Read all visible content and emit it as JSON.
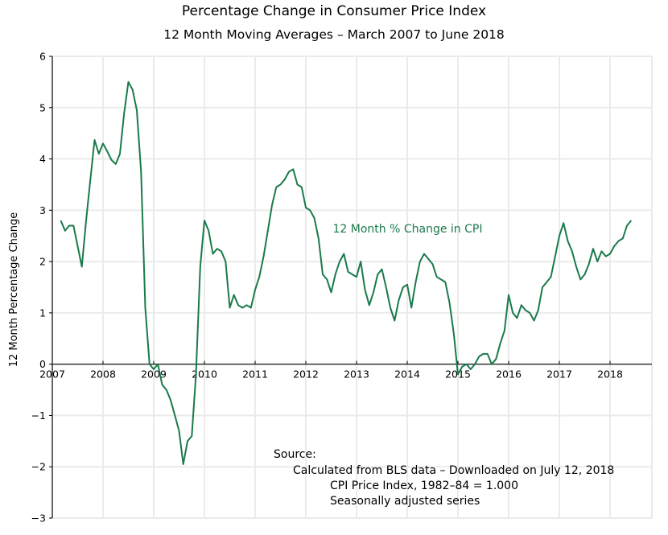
{
  "chart_data": {
    "type": "line",
    "title": "Percentage Change in Consumer Price Index",
    "subtitle": "12 Month Moving Averages  –  March 2007 to June 2018",
    "xlabel": "",
    "ylabel": "12 Month Percentage Change",
    "xlim": [
      2007,
      2018.95
    ],
    "ylim": [
      -3,
      6
    ],
    "x_ticks": [
      "2007",
      "2008",
      "2009",
      "2010",
      "2011",
      "2012",
      "2013",
      "2014",
      "2015",
      "2016",
      "2017",
      "2018"
    ],
    "y_ticks": [
      "-3",
      "-2",
      "-1",
      "0",
      "1",
      "2",
      "3",
      "4",
      "5",
      "6"
    ],
    "grid": true,
    "line_color": "#1a7a4a",
    "series": [
      {
        "name": "12 Month % Change in CPI",
        "start": "2007-03",
        "frequency": "monthly",
        "values": [
          2.8,
          2.6,
          2.7,
          2.7,
          2.3,
          1.9,
          2.8,
          3.6,
          4.37,
          4.1,
          4.3,
          4.15,
          3.98,
          3.9,
          4.1,
          4.9,
          5.5,
          5.35,
          4.95,
          3.75,
          1.1,
          0.0,
          -0.1,
          0.0,
          -0.4,
          -0.5,
          -0.7,
          -1.0,
          -1.3,
          -1.95,
          -1.5,
          -1.4,
          -0.2,
          1.9,
          2.8,
          2.6,
          2.15,
          2.25,
          2.2,
          2.0,
          1.1,
          1.35,
          1.15,
          1.1,
          1.15,
          1.1,
          1.45,
          1.7,
          2.1,
          2.6,
          3.1,
          3.45,
          3.5,
          3.6,
          3.75,
          3.8,
          3.5,
          3.45,
          3.05,
          3.0,
          2.85,
          2.45,
          1.75,
          1.65,
          1.4,
          1.75,
          2.0,
          2.15,
          1.8,
          1.75,
          1.7,
          2.0,
          1.45,
          1.15,
          1.4,
          1.75,
          1.85,
          1.5,
          1.1,
          0.85,
          1.25,
          1.5,
          1.55,
          1.1,
          1.6,
          2.0,
          2.15,
          2.05,
          1.95,
          1.7,
          1.65,
          1.6,
          1.2,
          0.6,
          -0.2,
          -0.05,
          0.0,
          -0.1,
          0.0,
          0.15,
          0.2,
          0.2,
          0.0,
          0.1,
          0.4,
          0.65,
          1.35,
          1.0,
          0.9,
          1.15,
          1.05,
          1.0,
          0.85,
          1.05,
          1.5,
          1.6,
          1.7,
          2.1,
          2.5,
          2.75,
          2.4,
          2.2,
          1.9,
          1.65,
          1.75,
          1.95,
          2.25,
          2.0,
          2.2,
          2.1,
          2.15,
          2.3,
          2.4,
          2.45,
          2.7,
          2.8
        ]
      }
    ],
    "annotations": [
      {
        "text": "12 Month % Change in CPI",
        "x": 2012.5,
        "y": 2.5
      }
    ]
  },
  "source": {
    "heading": "Source:",
    "line1": "Calculated from BLS data – Downloaded on July 12, 2018",
    "line2": "CPI Price Index, 1982–84 = 1.000",
    "line3": "Seasonally adjusted series"
  }
}
